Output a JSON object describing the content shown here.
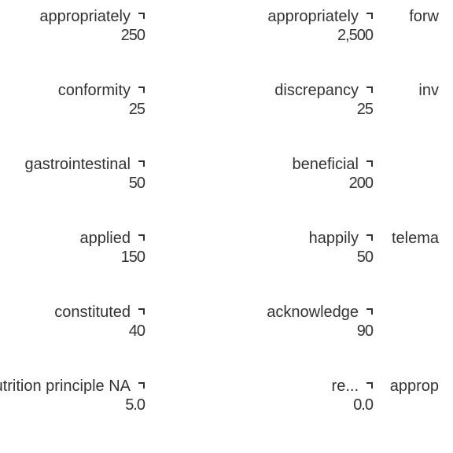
{
  "chart_data": {
    "type": "table",
    "note_visible": "overlapping labels; only partially legible fragments",
    "cells": [
      {
        "row": 0,
        "col": 0,
        "label": "appropriately",
        "value": "250"
      },
      {
        "row": 0,
        "col": 1,
        "label": "appropriately",
        "value": "2,500"
      },
      {
        "row": 0,
        "col": 2,
        "label": "forw",
        "value": ""
      },
      {
        "row": 1,
        "col": 0,
        "label": "conformity",
        "value": "25"
      },
      {
        "row": 1,
        "col": 1,
        "label": "discrepancy",
        "value": "25"
      },
      {
        "row": 1,
        "col": 2,
        "label": "inv",
        "value": ""
      },
      {
        "row": 2,
        "col": 0,
        "label": "gastrointestinal",
        "value": "50"
      },
      {
        "row": 2,
        "col": 1,
        "label": "beneficial",
        "value": "200"
      },
      {
        "row": 2,
        "col": 2,
        "label": "",
        "value": ""
      },
      {
        "row": 3,
        "col": 0,
        "label": "applied",
        "value": "150"
      },
      {
        "row": 3,
        "col": 1,
        "label": "happily",
        "value": "50"
      },
      {
        "row": 3,
        "col": 2,
        "label": "telema",
        "value": ""
      },
      {
        "row": 4,
        "col": 0,
        "label": "constituted",
        "value": "40"
      },
      {
        "row": 4,
        "col": 1,
        "label": "acknowledge",
        "value": "90"
      },
      {
        "row": 4,
        "col": 2,
        "label": "",
        "value": ""
      },
      {
        "row": 5,
        "col": 0,
        "label": "nutrition principle NA",
        "value": "5.0"
      },
      {
        "row": 5,
        "col": 1,
        "label": "re...",
        "value": "0.0"
      },
      {
        "row": 5,
        "col": 2,
        "label": "approp",
        "value": ""
      }
    ]
  }
}
